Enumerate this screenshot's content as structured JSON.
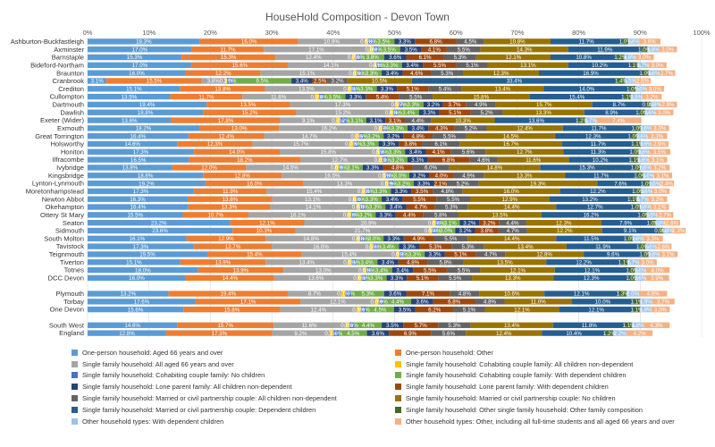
{
  "chart_data": {
    "type": "bar",
    "orientation": "horizontal",
    "stacked": "percent",
    "title": "HouseHold Composition - Devon Town",
    "xlim": [
      0,
      100
    ],
    "x_ticks": [
      "0%",
      "10%",
      "20%",
      "30%",
      "40%",
      "50%",
      "60%",
      "70%",
      "80%",
      "90%",
      "100%"
    ],
    "grid": true,
    "legend_position": "bottom",
    "categories": [
      "Ashburton-Buckfastleigh",
      "Axminster",
      "Barnstaple",
      "Bideford-Northam",
      "Braunton",
      "Cranbrook",
      "Crediton",
      "Cullompton",
      "Dartmouth",
      "Dawlish",
      "Exeter (Wider)",
      "Exmouth",
      "Great Torrington",
      "Holsworthy",
      "Honiton",
      "Ilfracombe",
      "Ivybridge",
      "Kingsbridge",
      "Lynton-Lynmouth",
      "Moretonhampstead",
      "Newton Abbot",
      "Okehampton",
      "Ottery St Mary",
      "Seaton",
      "Sidmouth",
      "South Molton",
      "Tavistock",
      "Teignmouth",
      "Tiverton",
      "Totnes",
      "DCC Devon",
      "",
      "Plymouth",
      "Torbay",
      "One Devon",
      "",
      "South West",
      "England"
    ],
    "series": [
      {
        "name": "One-person household: Aged 66 years and over",
        "color": "#5b9bd5",
        "values": [
          18.3,
          17.0,
          15.3,
          17.0,
          16.0,
          3.1,
          15.1,
          13.5,
          19.4,
          18.8,
          13.6,
          18.2,
          16.4,
          14.6,
          17.3,
          16.5,
          13.8,
          18.8,
          19.2,
          17.3,
          16.3,
          16.4,
          15.5,
          23.2,
          23.6,
          16.1,
          17.3,
          19.5,
          15.1,
          18.0,
          16.0,
          null,
          13.2,
          17.6,
          15.6,
          null,
          14.6,
          12.8
        ]
      },
      {
        "name": "One-person household: Other",
        "color": "#ed7d31",
        "values": [
          16.0,
          11.7,
          15.3,
          15.6,
          12.2,
          15.5,
          13.8,
          11.7,
          13.5,
          15.2,
          17.8,
          13.0,
          12.4,
          12.3,
          14.0,
          18.2,
          12.0,
          12.8,
          16.0,
          11.9,
          13.8,
          13.3,
          10.7,
          12.1,
          10.3,
          12.9,
          12.7,
          15.4,
          13.9,
          13.9,
          14.4,
          null,
          19.4,
          17.1,
          15.8,
          null,
          15.7,
          17.3
        ]
      },
      {
        "name": "Single family household: All aged 66 years and over",
        "color": "#a5a5a5",
        "values": [
          10.9,
          17.1,
          12.4,
          14.1,
          15.1,
          3.8,
          13.5,
          11.8,
          17.3,
          15.2,
          9.1,
          16.2,
          14.7,
          15.7,
          15.8,
          12.7,
          14.5,
          16.5,
          13.3,
          15.4,
          13.1,
          14.1,
          16.1,
          20.9,
          21.7,
          14.8,
          16.0,
          15.4,
          13.4,
          13.0,
          13.6,
          null,
          8.7,
          12.1,
          12.4,
          null,
          11.6,
          9.2
        ]
      },
      {
        "name": "Single family household: Cohabiting couple family: All children non-dependent",
        "color": "#ffc000",
        "values": [
          0.5,
          0.8,
          0.7,
          0.4,
          0.5,
          0.3,
          0.6,
          0.7,
          0.5,
          0.6,
          0.6,
          0.6,
          0.7,
          0.7,
          0.5,
          0.6,
          0.6,
          0.5,
          0.5,
          0.7,
          0.6,
          0.6,
          0.6,
          0.5,
          0.5,
          0.6,
          0.5,
          0.5,
          0.6,
          0.5,
          0.6,
          null,
          0.7,
          0.6,
          0.7,
          null,
          0.7,
          0.7
        ]
      },
      {
        "name": "Single family household: Cohabiting couple family: No children",
        "color": "#4472c4",
        "values": [
          0.8,
          0.8,
          0.8,
          0.8,
          0.8,
          1.0,
          0.8,
          0.8,
          0.7,
          0.8,
          1.2,
          0.8,
          0.8,
          0.8,
          0.8,
          0.9,
          0.8,
          0.8,
          0.9,
          0.8,
          0.8,
          0.8,
          0.8,
          0.8,
          0.8,
          0.8,
          0.8,
          0.8,
          0.8,
          0.8,
          0.8,
          null,
          1.0,
          0.9,
          0.9,
          null,
          0.9,
          1.0
        ]
      },
      {
        "name": "Single family household: Cohabiting couple family: With dependent children",
        "color": "#70ad47",
        "values": [
          3.5,
          3.5,
          3.8,
          3.3,
          3.3,
          9.5,
          3.3,
          3.5,
          3.3,
          3.4,
          3.1,
          3.3,
          3.2,
          3.3,
          3.3,
          3.2,
          3.1,
          3.0,
          3.2,
          3.3,
          3.3,
          3.3,
          3.2,
          3.1,
          3.0,
          3.0,
          3.4,
          3.3,
          3.4,
          3.4,
          3.3,
          null,
          5.3,
          4.4,
          4.5,
          null,
          4.4,
          4.5
        ]
      },
      {
        "name": "Single family household: Lone parent family: All children non-dependent",
        "color": "#264478",
        "values": [
          3.3,
          3.5,
          3.6,
          3.4,
          3.4,
          3.4,
          3.3,
          3.3,
          3.2,
          3.3,
          3.1,
          3.4,
          3.2,
          3.3,
          3.4,
          3.3,
          3.3,
          3.2,
          3.3,
          3.3,
          3.4,
          3.4,
          3.3,
          3.2,
          3.2,
          3.3,
          3.3,
          3.3,
          3.4,
          3.4,
          3.3,
          null,
          3.6,
          3.6,
          3.5,
          null,
          3.5,
          3.6
        ]
      },
      {
        "name": "Single family household: Lone parent family: With dependent children",
        "color": "#9e480e",
        "values": [
          6.8,
          4.1,
          6.1,
          5.5,
          4.6,
          2.5,
          5.1,
          5.4,
          3.7,
          5.1,
          3.1,
          4.3,
          4.8,
          3.8,
          4.1,
          6.8,
          4.8,
          4.0,
          2.1,
          3.5,
          5.5,
          4.7,
          4.4,
          3.2,
          3.8,
          4.9,
          5.3,
          5.1,
          4.8,
          5.5,
          5.1,
          null,
          7.1,
          6.8,
          6.2,
          null,
          5.7,
          6.9
        ]
      },
      {
        "name": "Single family household: Married or civil partnership couple: All children non-dependent",
        "color": "#636363",
        "values": [
          4.5,
          5.5,
          5.3,
          5.1,
          5.3,
          3.2,
          5.4,
          5.5,
          4.9,
          5.2,
          4.4,
          5.2,
          5.5,
          6.1,
          5.6,
          4.6,
          6.0,
          4.9,
          5.2,
          4.8,
          5.5,
          5.3,
          5.8,
          4.4,
          4.7,
          5.5,
          5.3,
          4.7,
          5.8,
          5.5,
          5.5,
          null,
          4.8,
          4.8,
          5.1,
          null,
          5.3,
          5.6
        ]
      },
      {
        "name": "Single family household: Married or civil partnership couple: No children",
        "color": "#997300",
        "values": [
          10.8,
          14.3,
          12.1,
          13.1,
          12.3,
          10.5,
          13.4,
          15.8,
          15.7,
          13.3,
          10.3,
          12.4,
          14.5,
          16.7,
          12.7,
          11.6,
          14.8,
          13.3,
          19.3,
          16.0,
          12.9,
          14.4,
          13.5,
          12.3,
          12.2,
          14.4,
          13.4,
          12.8,
          13.5,
          12.1,
          13.3,
          null,
          10.6,
          11.0,
          12.1,
          null,
          13.4,
          12.4
        ]
      },
      {
        "name": "Single family household: Married or civil partnership couple: Dependent children",
        "color": "#255e91",
        "values": [
          11.7,
          11.9,
          10.8,
          10.2,
          16.9,
          33.4,
          14.0,
          15.4,
          8.7,
          8.9,
          13.6,
          11.7,
          12.3,
          11.7,
          11.3,
          10.2,
          15.3,
          11.7,
          7.6,
          12.2,
          13.2,
          12.7,
          16.2,
          7.9,
          9.1,
          11.5,
          11.9,
          9.6,
          12.2,
          12.1,
          12.3,
          null,
          12.1,
          10.0,
          12.1,
          null,
          11.8,
          10.4
        ]
      },
      {
        "name": "Single family household: Other single family household: Other family composition",
        "color": "#43682b",
        "values": [
          1.0,
          1.0,
          1.2,
          1.1,
          1.0,
          1.4,
          1.0,
          1.1,
          0.9,
          1.0,
          1.2,
          1.0,
          1.0,
          1.1,
          1.0,
          1.1,
          1.0,
          1.0,
          1.0,
          1.0,
          1.1,
          1.0,
          1.0,
          1.0,
          0.9,
          1.0,
          1.0,
          1.0,
          1.1,
          1.0,
          1.0,
          null,
          1.3,
          1.1,
          1.1,
          null,
          1.1,
          1.2
        ]
      },
      {
        "name": "Other household types: With dependent children",
        "color": "#9dc3e6",
        "values": [
          1.6,
          1.8,
          1.8,
          1.7,
          1.6,
          1.5,
          1.6,
          1.8,
          1.3,
          1.6,
          1.7,
          1.6,
          1.6,
          1.6,
          1.6,
          1.6,
          1.6,
          1.6,
          1.5,
          1.6,
          1.7,
          1.6,
          1.6,
          1.3,
          1.3,
          1.6,
          1.6,
          1.6,
          1.7,
          1.6,
          1.6,
          null,
          2.0,
          1.9,
          1.8,
          null,
          1.8,
          2.2
        ]
      },
      {
        "name": "Other household types: Other, including all full-time students and all aged 66 years and over",
        "color": "#f4b183",
        "values": [
          3.6,
          3.0,
          3.0,
          3.0,
          2.7,
          2.6,
          3.0,
          3.2,
          2.9,
          3.0,
          7.4,
          3.0,
          3.3,
          2.9,
          3.5,
          3.1,
          3.2,
          3.1,
          2.4,
          3.0,
          3.2,
          3.1,
          2.7,
          2.6,
          2.3,
          3.3,
          2.6,
          3.1,
          3.0,
          4.0,
          3.9,
          null,
          4.6,
          3.7,
          3.0,
          null,
          4.3,
          4.2
        ]
      }
    ]
  }
}
